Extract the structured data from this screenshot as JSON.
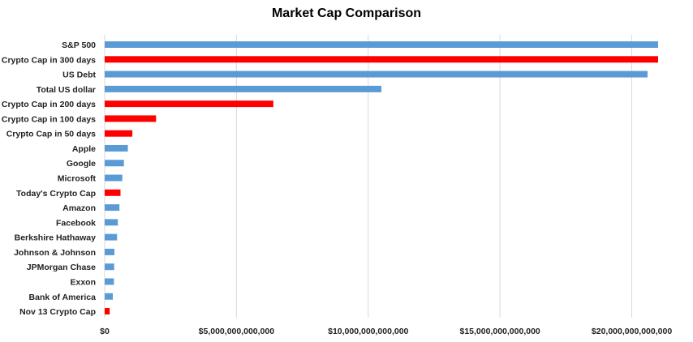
{
  "chart_data": {
    "type": "bar",
    "orientation": "horizontal",
    "title": "Market Cap Comparison",
    "xlabel": "",
    "ylabel": "",
    "xlim": [
      0,
      21000000000000
    ],
    "grid": true,
    "legend": "none",
    "x_ticks": [
      {
        "value": 0,
        "label": "$0"
      },
      {
        "value": 5000000000000,
        "label": "$5,000,000,000,000"
      },
      {
        "value": 10000000000000,
        "label": "$10,000,000,000,000"
      },
      {
        "value": 15000000000000,
        "label": "$15,000,000,000,000"
      },
      {
        "value": 20000000000000,
        "label": "$20,000,000,000,000"
      }
    ],
    "colors": {
      "default": "#5b9bd5",
      "crypto": "#ff0000"
    },
    "categories": [
      "S&P 500",
      "Crypto Cap in 300 days",
      "US Debt",
      "Total US dollar",
      "Crypto Cap in 200 days",
      "Crypto Cap in 100 days",
      "Crypto Cap in 50 days",
      "Apple",
      "Google",
      "Microsoft",
      "Today's Crypto Cap",
      "Amazon",
      "Facebook",
      "Berkshire Hathaway",
      "Johnson & Johnson",
      "JPMorgan Chase",
      "Exxon",
      "Bank of America",
      "Nov 13 Crypto Cap"
    ],
    "values": [
      21000000000000,
      21000000000000,
      20600000000000,
      10500000000000,
      6400000000000,
      1950000000000,
      1050000000000,
      880000000000,
      730000000000,
      670000000000,
      600000000000,
      560000000000,
      500000000000,
      470000000000,
      370000000000,
      360000000000,
      350000000000,
      310000000000,
      190000000000
    ],
    "highlight": [
      false,
      true,
      false,
      false,
      true,
      true,
      true,
      false,
      false,
      false,
      true,
      false,
      false,
      false,
      false,
      false,
      false,
      false,
      true
    ]
  }
}
